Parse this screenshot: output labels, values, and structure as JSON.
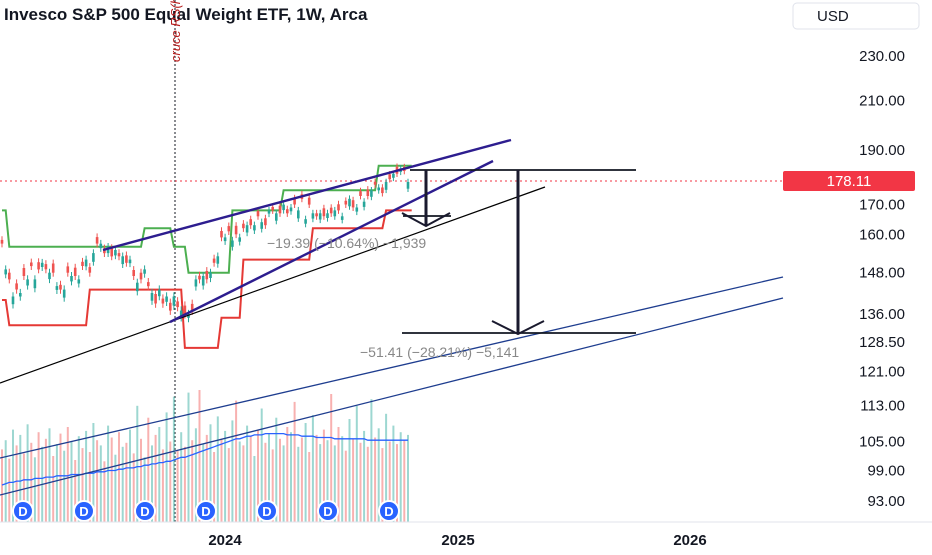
{
  "header": {
    "title": "Invesco S&P 500 Equal Weight ETF, 1W, Arca",
    "currency_button": "USD"
  },
  "annotations": {
    "vertical_marker_label": "cruce RS(h)",
    "measure_short": "−19.39 (−10.64%) −1,939",
    "measure_long": "−51.41 (−28.21%) −5,141",
    "dividend_marker": "D"
  },
  "colors": {
    "price_line": "#f23645",
    "channel_upper": "#4caf50",
    "channel_lower": "#e53935",
    "trend_wedge": "#2d1d8f",
    "long_channel": "#1e3d8f",
    "volume_ma": "#2962ff",
    "dividend_badge": "#2962ff"
  },
  "chart_data": {
    "type": "candlestick",
    "title": "Invesco S&P 500 Equal Weight ETF, 1W, Arca",
    "current_price": "178.11",
    "y_ticks": [
      "230.00",
      "210.00",
      "190.00",
      "170.00",
      "160.00",
      "148.00",
      "136.00",
      "128.50",
      "121.00",
      "113.00",
      "105.00",
      "99.00",
      "93.00"
    ],
    "x_ticks": [
      "2024",
      "2025",
      "2026"
    ],
    "scale": "log",
    "ylim": [
      90,
      240
    ],
    "channel_upper": [
      168,
      168,
      156,
      156,
      156,
      156,
      156,
      156,
      156,
      156,
      156,
      156,
      156,
      156,
      156,
      156,
      156,
      156,
      156,
      156,
      156,
      156,
      156,
      156,
      156,
      156,
      156,
      156,
      156,
      156,
      156,
      156,
      156,
      156,
      156,
      156,
      156,
      156,
      156,
      162,
      162,
      162,
      162,
      162,
      162,
      162,
      162,
      156,
      156,
      156,
      156,
      148,
      148,
      148,
      148,
      148,
      148,
      148,
      148,
      148,
      148,
      148,
      148,
      168,
      168,
      168,
      168,
      168,
      168,
      168,
      168,
      168,
      168,
      168,
      168,
      168,
      168,
      175,
      175,
      175,
      175,
      175,
      175,
      175,
      175,
      175,
      175,
      175,
      175,
      175,
      175,
      175,
      175,
      175,
      175,
      175,
      175,
      175,
      175,
      175,
      175,
      175,
      175,
      184,
      184,
      184,
      184,
      184,
      184,
      184,
      184,
      184,
      184
    ],
    "channel_lower": [
      140,
      140,
      133,
      133,
      133,
      133,
      133,
      133,
      133,
      133,
      133,
      133,
      133,
      133,
      133,
      133,
      133,
      133,
      133,
      133,
      133,
      133,
      133,
      133,
      143,
      143,
      143,
      143,
      143,
      143,
      143,
      143,
      143,
      143,
      143,
      143,
      143,
      143,
      143,
      143,
      143,
      143,
      143,
      143,
      143,
      143,
      143,
      143,
      143,
      143,
      127,
      127,
      127,
      127,
      127,
      127,
      127,
      127,
      127,
      127,
      135,
      135,
      135,
      135,
      135,
      135,
      152,
      152,
      152,
      152,
      152,
      152,
      152,
      152,
      152,
      152,
      152,
      152,
      152,
      152,
      152,
      152,
      152,
      152,
      152,
      162,
      162,
      162,
      162,
      162,
      162,
      162,
      162,
      162,
      162,
      162,
      162,
      162,
      162,
      162,
      162,
      162,
      162,
      162,
      162,
      168,
      168,
      168,
      168,
      168,
      168,
      168,
      168
    ],
    "close": [
      157,
      149,
      146,
      141,
      143,
      142,
      147,
      146,
      150,
      146,
      149,
      151,
      149,
      148,
      148,
      144,
      143,
      143,
      148,
      147,
      147,
      146,
      150,
      152,
      148,
      154,
      157,
      157,
      154,
      156,
      153,
      155,
      153,
      153,
      151,
      152,
      147,
      145,
      146,
      149,
      144,
      142,
      139,
      143,
      139,
      141,
      137,
      141,
      138,
      137,
      136,
      136,
      137,
      146,
      146,
      147,
      146,
      148,
      151,
      153,
      159,
      159,
      161,
      158,
      160,
      159,
      162,
      163,
      163,
      163,
      166,
      164,
      163,
      168,
      168,
      167,
      167,
      170,
      167,
      169,
      170,
      168,
      172,
      165,
      170,
      167,
      166,
      167,
      166,
      167,
      167,
      168,
      168,
      166,
      170,
      172,
      169,
      169,
      173,
      171,
      173,
      175,
      177,
      176,
      174,
      178,
      179,
      181,
      181,
      183,
      182,
      178
    ],
    "open_offset": [
      1.2,
      -1.5,
      2.0,
      -2.2,
      1.8,
      -1.0,
      2.4,
      -1.8,
      1.1,
      -2.6,
      2.2,
      -1.3,
      1.6,
      -1.9,
      2.8,
      -1.1,
      1.4,
      -2.3,
      1.9,
      -1.6,
      2.5,
      -1.2,
      1.3,
      -2.1,
      1.7,
      -2.7,
      2.1,
      -1.4,
      1.5,
      -2.0,
      2.6,
      -1.7,
      1.0,
      -2.4,
      2.3,
      -1.1,
      1.8,
      -2.5,
      2.0,
      -1.3,
      1.2,
      -2.2,
      2.7,
      -1.9,
      1.4,
      -1.5,
      2.2,
      -2.6,
      1.6,
      -1.8,
      2.4,
      -1.0,
      1.9,
      -2.1,
      1.1,
      -2.8,
      2.5,
      -1.6,
      1.3,
      -2.3,
      2.1,
      -1.2,
      1.7,
      -2.0,
      2.8,
      -1.4,
      1.5,
      -2.4,
      2.0,
      -1.7,
      1.8,
      -2.2,
      2.3,
      -1.1,
      1.2,
      -2.5,
      2.6,
      -1.9,
      1.4,
      -1.3,
      2.2,
      -2.7,
      1.6,
      -1.5,
      2.4,
      -1.8,
      1.0,
      -2.1,
      2.7,
      -1.6,
      1.9,
      -2.0,
      2.1,
      -1.2,
      1.3,
      -2.6,
      2.5,
      -1.4,
      1.7,
      -1.8,
      2.3,
      -2.3,
      1.1,
      -1.0,
      2.0,
      -2.8,
      1.8,
      -1.5,
      2.6,
      -1.3,
      1.5,
      -2.4
    ],
    "volume": [
      55,
      62,
      48,
      70,
      58,
      66,
      52,
      74,
      60,
      49,
      68,
      57,
      63,
      71,
      50,
      59,
      67,
      54,
      72,
      61,
      47,
      65,
      56,
      69,
      53,
      75,
      62,
      58,
      46,
      73,
      64,
      51,
      68,
      57,
      60,
      70,
      52,
      88,
      63,
      49,
      79,
      58,
      66,
      72,
      55,
      83,
      61,
      95,
      54,
      68,
      57,
      98,
      62,
      71,
      100,
      59,
      66,
      74,
      53,
      80,
      63,
      69,
      56,
      77,
      92,
      61,
      58,
      73,
      65,
      50,
      70,
      86,
      60,
      67,
      55,
      79,
      63,
      58,
      72,
      68,
      91,
      57,
      64,
      75,
      53,
      81,
      66,
      59,
      70,
      62,
      97,
      58,
      72,
      65,
      54,
      78,
      63,
      88,
      60,
      69,
      57,
      93,
      64,
      71,
      56,
      82,
      61,
      73,
      59,
      68,
      62,
      66
    ],
    "volume_ma": [
      28,
      29,
      30,
      30,
      31,
      31,
      32,
      32,
      32,
      33,
      33,
      33,
      34,
      34,
      34,
      35,
      35,
      35,
      35,
      36,
      36,
      36,
      36,
      37,
      37,
      37,
      38,
      38,
      38,
      39,
      39,
      39,
      40,
      40,
      41,
      41,
      41,
      42,
      42,
      43,
      43,
      44,
      44,
      45,
      45,
      46,
      46,
      47,
      48,
      49,
      49,
      50,
      51,
      52,
      53,
      54,
      55,
      56,
      57,
      58,
      59,
      60,
      61,
      62,
      63,
      63,
      64,
      65,
      65,
      66,
      66,
      66,
      67,
      67,
      67,
      67,
      67,
      67,
      66,
      66,
      66,
      66,
      65,
      65,
      65,
      65,
      64,
      64,
      64,
      64,
      64,
      63,
      63,
      63,
      63,
      63,
      63,
      63,
      63,
      63,
      62,
      62,
      62,
      62,
      62,
      62,
      62,
      62,
      62,
      62,
      62,
      62
    ],
    "dividend_markers": 7
  }
}
